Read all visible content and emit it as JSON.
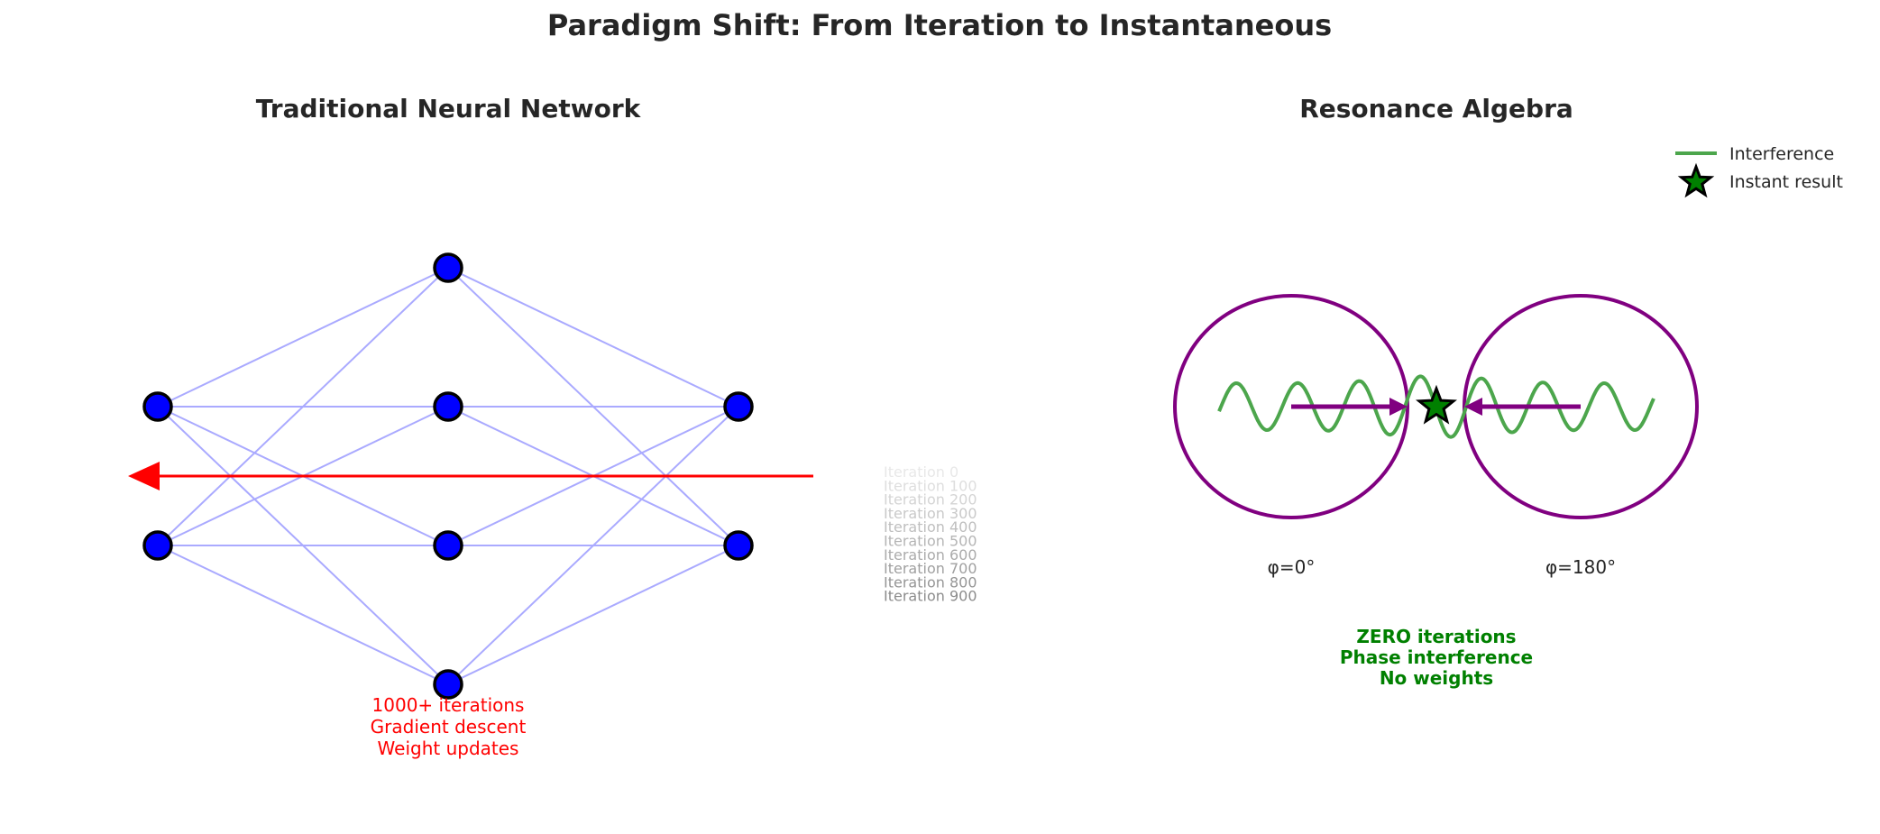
{
  "title": "Paradigm Shift: From Iteration to Instantaneous",
  "colors": {
    "node_fill": "#0000ff",
    "edge": "#aaaaff",
    "arrow_red": "#ff0000",
    "purple": "#800080",
    "wave_green": "#4ca64c",
    "text_green": "#008000",
    "text_dark": "#262626"
  },
  "left_panel": {
    "title": "Traditional Neural Network",
    "layers": [
      {
        "nodes": [
          "input-1",
          "input-2"
        ]
      },
      {
        "nodes": [
          "hidden-1",
          "hidden-2",
          "hidden-3",
          "hidden-4"
        ]
      },
      {
        "nodes": [
          "output-1",
          "output-2"
        ]
      }
    ],
    "iteration_labels": [
      "Iteration 0",
      "Iteration 100",
      "Iteration 200",
      "Iteration 300",
      "Iteration 400",
      "Iteration 500",
      "Iteration 600",
      "Iteration 700",
      "Iteration 800",
      "Iteration 900"
    ],
    "caption": [
      "1000+ iterations",
      "Gradient descent",
      "Weight updates"
    ]
  },
  "right_panel": {
    "title": "Resonance Algebra",
    "left_phase_label": "φ=0°",
    "right_phase_label": "φ=180°",
    "caption": [
      "ZERO iterations",
      "Phase interference",
      "No weights"
    ],
    "legend": {
      "position": "top-right",
      "items": [
        {
          "label": "Interference",
          "marker": "line",
          "color": "#4ca64c"
        },
        {
          "label": "Instant result",
          "marker": "star-icon",
          "color": "#008000"
        }
      ]
    }
  }
}
